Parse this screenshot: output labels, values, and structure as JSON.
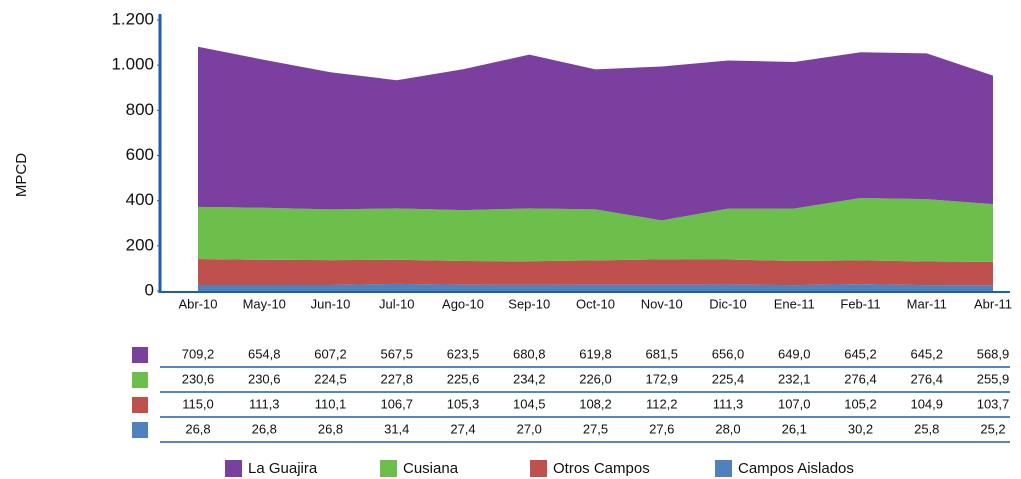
{
  "chart_data": {
    "type": "stacked-area",
    "y_label": "MPCD",
    "categories": [
      "Abr-10",
      "May-10",
      "Jun-10",
      "Jul-10",
      "Ago-10",
      "Sep-10",
      "Oct-10",
      "Nov-10",
      "Dic-10",
      "Ene-11",
      "Feb-11",
      "Mar-11",
      "Abr-11"
    ],
    "ylim": [
      0,
      1200
    ],
    "yticks": [
      0,
      200,
      400,
      600,
      800,
      {
        "value": 1000,
        "label": "1.000"
      },
      {
        "value": 1200,
        "label": "1.200"
      }
    ],
    "series": [
      {
        "name": "La Guajira",
        "color": "#7b3f9f",
        "values": [
          709.2,
          654.8,
          607.2,
          567.5,
          623.5,
          680.8,
          619.8,
          681.5,
          656.0,
          649.0,
          645.2,
          645.2,
          568.9
        ],
        "value_labels": [
          "709,2",
          "654,8",
          "607,2",
          "567,5",
          "623,5",
          "680,8",
          "619,8",
          "681,5",
          "656,0",
          "649,0",
          "645,2",
          "645,2",
          "568,9"
        ]
      },
      {
        "name": "Cusiana",
        "color": "#6cbf4a",
        "values": [
          230.6,
          230.6,
          224.5,
          227.8,
          225.6,
          234.2,
          226.0,
          172.9,
          225.4,
          232.1,
          276.4,
          276.4,
          255.9
        ],
        "value_labels": [
          "230,6",
          "230,6",
          "224,5",
          "227,8",
          "225,6",
          "234,2",
          "226,0",
          "172,9",
          "225,4",
          "232,1",
          "276,4",
          "276,4",
          "255,9"
        ]
      },
      {
        "name": "Otros Campos",
        "color": "#c0504d",
        "values": [
          115.0,
          111.3,
          110.1,
          106.7,
          105.3,
          104.5,
          108.2,
          112.2,
          111.3,
          107.0,
          105.2,
          104.9,
          103.7
        ],
        "value_labels": [
          "115,0",
          "111,3",
          "110,1",
          "106,7",
          "105,3",
          "104,5",
          "108,2",
          "112,2",
          "111,3",
          "107,0",
          "105,2",
          "104,9",
          "103,7"
        ]
      },
      {
        "name": "Campos Aislados",
        "color": "#4f81bd",
        "values": [
          26.8,
          26.8,
          26.8,
          31.4,
          27.4,
          27.0,
          27.5,
          27.6,
          28.0,
          26.1,
          30.2,
          25.8,
          25.2
        ],
        "value_labels": [
          "26,8",
          "26,8",
          "26,8",
          "31,4",
          "27,4",
          "27,0",
          "27,5",
          "27,6",
          "28,0",
          "26,1",
          "30,2",
          "25,8",
          "25,2"
        ]
      }
    ]
  }
}
